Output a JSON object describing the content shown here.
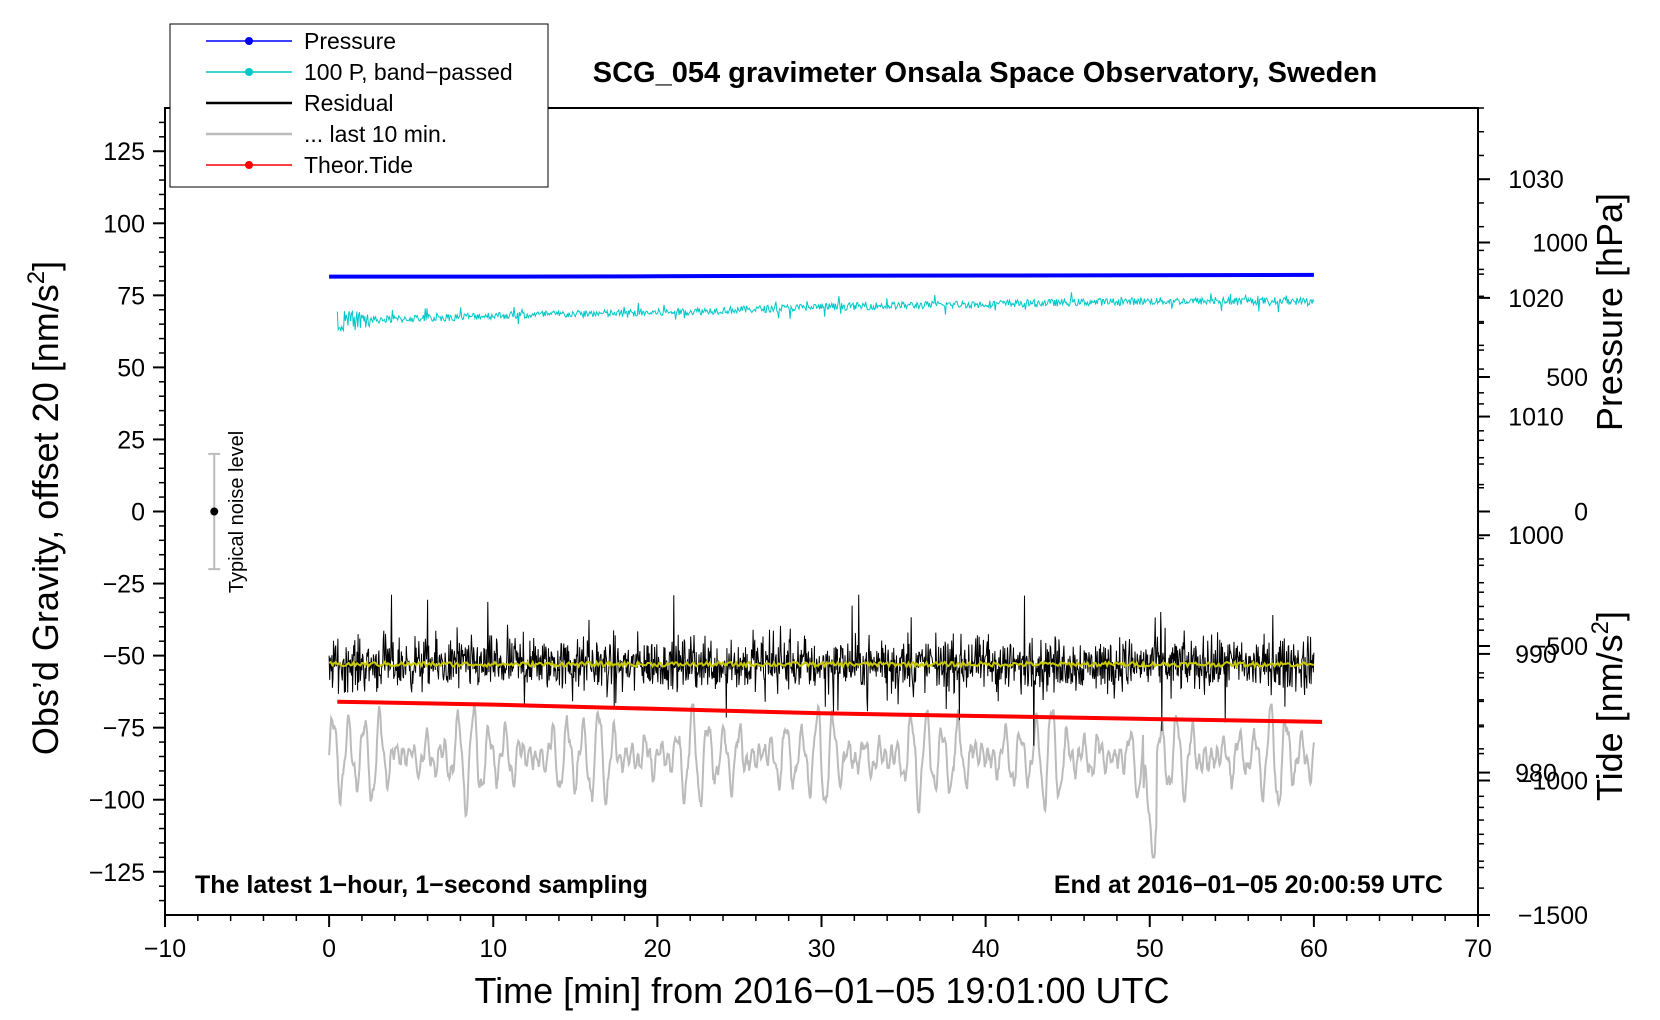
{
  "chart_data": {
    "type": "line",
    "title": "SCG_054 gravimeter Onsala Space Observatory, Sweden",
    "xlabel": "Time [min] from 2016−01−05 19:01:00 UTC",
    "ylabel_left_main": "Obs’d Gravity, offset 20 [nm/s",
    "ylabel_left_sup": "2",
    "ylabel_left_end": "]",
    "ylabel_right_top": "Pressure [hPa]",
    "ylabel_right_bottom_main": "Tide [nm/s",
    "ylabel_right_bottom_sup": "2",
    "ylabel_right_bottom_end": "]",
    "xlim": [
      -10,
      70
    ],
    "ylim": [
      -140,
      140
    ],
    "pressure_ylim": [
      968,
      1036
    ],
    "tide_ylim": [
      -1500,
      1500
    ],
    "x_ticks": [
      -10,
      0,
      10,
      20,
      30,
      40,
      50,
      60,
      70
    ],
    "x_tick_labels": [
      "−10",
      "0",
      "10",
      "20",
      "30",
      "40",
      "50",
      "60",
      "70"
    ],
    "y_ticks": [
      125,
      100,
      75,
      50,
      25,
      0,
      -25,
      -50,
      -75,
      -100,
      -125
    ],
    "y_tick_labels": [
      "125",
      "100",
      "75",
      "50",
      "25",
      "0",
      "−25",
      "−50",
      "−75",
      "−100",
      "−125"
    ],
    "pressure_ticks": [
      980,
      990,
      1000,
      1010,
      1020,
      1030
    ],
    "pressure_tick_labels": [
      "980",
      "990",
      "1000",
      "1010",
      "1020",
      "1030"
    ],
    "tide_ticks": [
      1000,
      500,
      0,
      -500,
      -1000,
      -1500
    ],
    "tide_tick_labels": [
      "1000",
      "500",
      "0",
      "−500",
      "−1000",
      "−1500"
    ],
    "legend": [
      {
        "label": "Pressure",
        "color": "#0000ff",
        "marker": true
      },
      {
        "label": "100 P, band−passed",
        "color": "#00c8c8",
        "marker": true
      },
      {
        "label": "Residual",
        "color": "#000000",
        "marker": false
      },
      {
        "label": "... last 10 min.",
        "color": "#bbbbbb",
        "marker": false
      },
      {
        "label": "Theor.Tide",
        "color": "#ff0000",
        "marker": true
      }
    ],
    "series": [
      {
        "name": "Pressure",
        "color": "#0000ff",
        "x": [
          0,
          10,
          20,
          30,
          40,
          50,
          60
        ],
        "y": [
          81.5,
          81.5,
          81.6,
          81.8,
          81.9,
          82.0,
          82.1
        ]
      },
      {
        "name": "100 P, band-passed",
        "color": "#00c8c8",
        "x": [
          0.5,
          10,
          20,
          30,
          40,
          50,
          60
        ],
        "y": [
          66,
          68,
          69,
          71,
          72,
          73,
          73
        ]
      },
      {
        "name": "Residual",
        "color": "#000000",
        "x": [
          0,
          60
        ],
        "y": [
          -53,
          -53
        ],
        "noise_range": [
          -84,
          -26
        ]
      },
      {
        "name": "Residual (smoothed)",
        "color": "#c8c800",
        "x": [
          0,
          60
        ],
        "y": [
          -53,
          -53
        ]
      },
      {
        "name": "... last 10 min.",
        "color": "#bbbbbb",
        "x": [
          0,
          60
        ],
        "y": [
          -85,
          -85
        ],
        "noise_range": [
          -120,
          -67
        ]
      },
      {
        "name": "Theor.Tide",
        "color": "#ff0000",
        "x": [
          0.5,
          10,
          20,
          30,
          40,
          50,
          60.5
        ],
        "y": [
          -66,
          -67,
          -68.5,
          -70,
          -71,
          -72,
          -73
        ]
      }
    ],
    "noise_level": {
      "label": "Typical noise level",
      "x": -7,
      "center": 0,
      "range": [
        -20,
        20
      ]
    },
    "annotation_left": "The latest 1−hour, 1−second sampling",
    "annotation_right": "End at 2016−01−05 20:00:59 UTC"
  }
}
